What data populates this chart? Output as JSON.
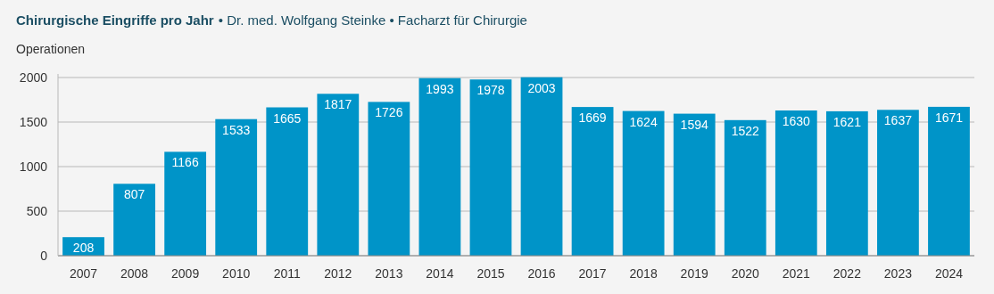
{
  "chart_data": {
    "type": "bar",
    "title": "Chirurgische Eingriffe pro Jahr",
    "subtitle": "• Dr. med. Wolfgang Steinke • Facharzt für Chirurgie",
    "ylabel": "Operationen",
    "categories": [
      "2007",
      "2008",
      "2009",
      "2010",
      "2011",
      "2012",
      "2013",
      "2014",
      "2015",
      "2016",
      "2017",
      "2018",
      "2019",
      "2020",
      "2021",
      "2022",
      "2023",
      "2024"
    ],
    "values": [
      208,
      807,
      1166,
      1533,
      1665,
      1817,
      1726,
      1993,
      1978,
      2003,
      1669,
      1624,
      1594,
      1522,
      1630,
      1621,
      1637,
      1671
    ],
    "color": "#0094c8",
    "ylim": [
      0,
      2040
    ],
    "yticks": [
      0,
      500,
      1000,
      1500,
      2000
    ],
    "grid": "y",
    "data_labels": true
  }
}
